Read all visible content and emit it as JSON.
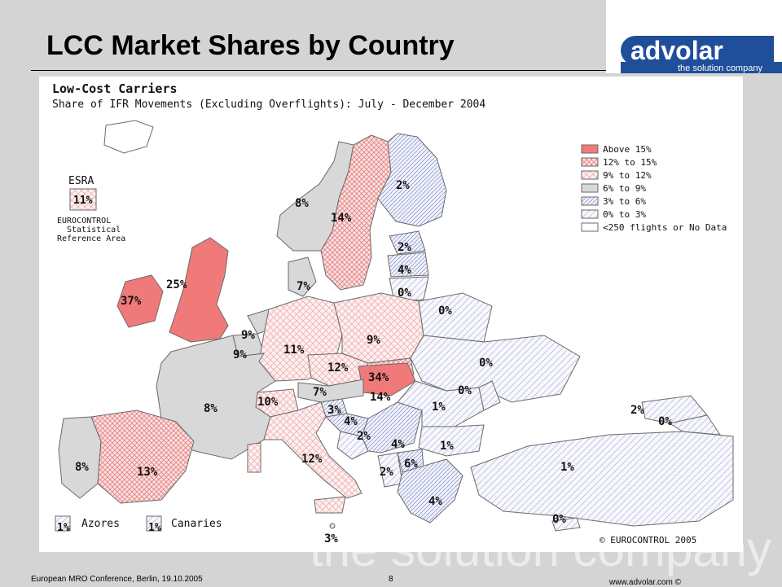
{
  "slide": {
    "title": "LCC Market Shares by Country",
    "page_number": "8",
    "footer_left": "European MRO Conference, Berlin, 19.10.2005",
    "footer_right": "www.advolar.com ©",
    "watermark": "the solution company"
  },
  "logo": {
    "name": "advolar",
    "tagline": "the solution company",
    "brand_color": "#1f4e9a"
  },
  "map": {
    "title": "Low-Cost Carriers",
    "subtitle": "Share of IFR Movements (Excluding Overflights): July - December 2004",
    "esra_heading": "ESRA",
    "esra_value": "11%",
    "esra_caption_1": "EUROCONTROL",
    "esra_caption_2": "Statistical",
    "esra_caption_3": "Reference Area",
    "copyright": "© EUROCONTROL 2005",
    "colors": {
      "above15": "#f07a7a",
      "crosshatch": "#f3a9a9",
      "crosshatch_light": "#f6c8c8",
      "grey": "#d8d8d8",
      "blue_hatch": "#9aa6d6",
      "outline": "#6a6a6a"
    },
    "legend": [
      {
        "label": "Above 15%",
        "pattern": "above15"
      },
      {
        "label": "12% to 15%",
        "pattern": "cross-dense"
      },
      {
        "label": "9% to 12%",
        "pattern": "cross-light"
      },
      {
        "label": "6% to 9%",
        "pattern": "grey"
      },
      {
        "label": "3% to 6%",
        "pattern": "hatch-dense"
      },
      {
        "label": "0% to 3%",
        "pattern": "hatch-light"
      },
      {
        "label": "<250 flights or No Data",
        "pattern": "none"
      }
    ],
    "insets": [
      {
        "value": "1%",
        "name": "Azores"
      },
      {
        "value": "1%",
        "name": "Canaries"
      }
    ],
    "countries": [
      {
        "name": "Ireland",
        "value": "37%"
      },
      {
        "name": "United Kingdom",
        "value": "25%"
      },
      {
        "name": "Norway",
        "value": "8%"
      },
      {
        "name": "Sweden",
        "value": "14%"
      },
      {
        "name": "Finland",
        "value": "2%"
      },
      {
        "name": "Estonia",
        "value": "2%"
      },
      {
        "name": "Latvia",
        "value": "4%"
      },
      {
        "name": "Lithuania",
        "value": "0%"
      },
      {
        "name": "Denmark",
        "value": "7%"
      },
      {
        "name": "Belarus",
        "value": "0%"
      },
      {
        "name": "Netherlands",
        "value": "9%"
      },
      {
        "name": "Belgium",
        "value": "9%"
      },
      {
        "name": "Germany",
        "value": "11%"
      },
      {
        "name": "Poland",
        "value": "9%"
      },
      {
        "name": "Ukraine",
        "value": "0%"
      },
      {
        "name": "Czech Republic",
        "value": "12%"
      },
      {
        "name": "Hungary",
        "value": "34%"
      },
      {
        "name": "Slovakia",
        "value": "14%"
      },
      {
        "name": "Moldova",
        "value": "0%"
      },
      {
        "name": "Austria",
        "value": "7%"
      },
      {
        "name": "Switzerland",
        "value": "10%"
      },
      {
        "name": "France",
        "value": "8%"
      },
      {
        "name": "Slovenia",
        "value": "3%"
      },
      {
        "name": "Croatia",
        "value": "4%"
      },
      {
        "name": "Romania",
        "value": "1%"
      },
      {
        "name": "Bosnia and Herzegovina",
        "value": "2%"
      },
      {
        "name": "Serbia",
        "value": "4%"
      },
      {
        "name": "Bulgaria",
        "value": "1%"
      },
      {
        "name": "Macedonia",
        "value": "6%"
      },
      {
        "name": "Albania",
        "value": "2%"
      },
      {
        "name": "Portugal",
        "value": "8%"
      },
      {
        "name": "Spain",
        "value": "13%"
      },
      {
        "name": "Italy",
        "value": "12%"
      },
      {
        "name": "Greece",
        "value": "4%"
      },
      {
        "name": "Turkey",
        "value": "1%"
      },
      {
        "name": "Georgia",
        "value": "2%"
      },
      {
        "name": "Armenia",
        "value": "0%"
      },
      {
        "name": "Cyprus",
        "value": "0%"
      },
      {
        "name": "Malta",
        "value": "3%"
      }
    ]
  }
}
